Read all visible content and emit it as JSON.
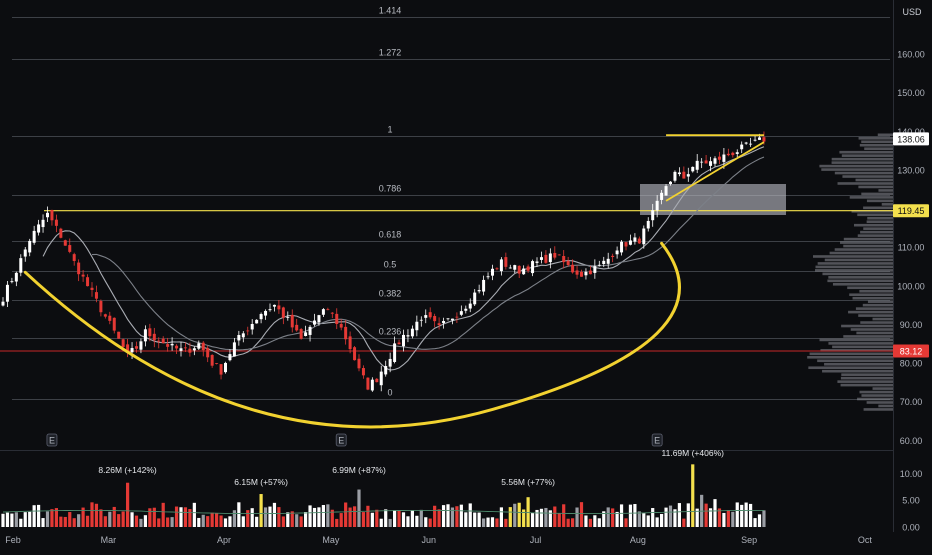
{
  "chart_data": {
    "type": "candlestick",
    "currency_label": "USD",
    "price_axis": {
      "ticks": [
        "160.00",
        "150.00",
        "140.00",
        "130.00",
        "120.00",
        "110.00",
        "100.00",
        "90.00",
        "80.00",
        "70.00",
        "60.00"
      ],
      "min": 57.5,
      "max": 174
    },
    "volume_axis": {
      "ticks": [
        "10.00",
        "5.00",
        "0.00"
      ],
      "max": 12.5
    },
    "time_axis": {
      "labels": [
        "Feb",
        "Mar",
        "Apr",
        "May",
        "Jun",
        "Jul",
        "Aug",
        "Sep",
        "Oct"
      ]
    },
    "price_labels": [
      {
        "value": 138.06,
        "text": "138.06",
        "color": "#ffffff"
      },
      {
        "value": 119.45,
        "text": "119.45",
        "color": "#f4e04d"
      },
      {
        "value": 83.12,
        "text": "83.12",
        "color": "#e53935"
      }
    ],
    "fib_levels": [
      {
        "label": "1.414",
        "value": 169.5
      },
      {
        "label": "1.272",
        "value": 158.6
      },
      {
        "label": "1",
        "value": 138.9
      },
      {
        "label": "0.786",
        "value": 123.6
      },
      {
        "label": "0.618",
        "value": 111.6
      },
      {
        "label": "0.5",
        "value": 103.9
      },
      {
        "label": "0.382",
        "value": 96.3
      },
      {
        "label": "0.236",
        "value": 86.6
      },
      {
        "label": "0",
        "value": 70.8
      }
    ],
    "volume_annotations": [
      {
        "text": "8.26M (+142%)",
        "day": 28
      },
      {
        "text": "6.15M (+57%)",
        "day": 58
      },
      {
        "text": "6.99M (+87%)",
        "day": 80
      },
      {
        "text": "5.56M (+77%)",
        "day": 118
      },
      {
        "text": "11.69M (+406%)",
        "day": 155
      }
    ],
    "earnings_markers": [
      "E",
      "E",
      "E"
    ],
    "price_waypoints": [
      [
        0,
        97
      ],
      [
        3,
        104
      ],
      [
        6,
        112
      ],
      [
        9,
        117
      ],
      [
        10,
        118.5
      ],
      [
        13,
        113
      ],
      [
        16,
        106
      ],
      [
        19,
        100
      ],
      [
        22,
        94
      ],
      [
        25,
        88
      ],
      [
        28,
        82
      ],
      [
        30,
        84
      ],
      [
        32,
        88
      ],
      [
        35,
        86
      ],
      [
        38,
        84
      ],
      [
        41,
        83
      ],
      [
        44,
        85
      ],
      [
        47,
        80
      ],
      [
        49,
        78
      ],
      [
        52,
        85
      ],
      [
        55,
        89
      ],
      [
        58,
        93
      ],
      [
        61,
        95
      ],
      [
        64,
        91
      ],
      [
        67,
        86
      ],
      [
        70,
        91
      ],
      [
        73,
        94
      ],
      [
        76,
        89
      ],
      [
        78,
        84
      ],
      [
        80,
        78
      ],
      [
        82,
        74
      ],
      [
        84,
        76
      ],
      [
        86,
        80
      ],
      [
        88,
        84
      ],
      [
        90,
        87
      ],
      [
        92,
        89
      ],
      [
        94,
        92
      ],
      [
        96,
        91
      ],
      [
        98,
        89
      ],
      [
        100,
        91
      ],
      [
        102,
        93
      ],
      [
        104,
        95
      ],
      [
        106,
        98
      ],
      [
        108,
        101
      ],
      [
        110,
        104
      ],
      [
        112,
        106
      ],
      [
        114,
        105
      ],
      [
        116,
        104
      ],
      [
        118,
        105
      ],
      [
        120,
        106
      ],
      [
        122,
        107
      ],
      [
        124,
        108
      ],
      [
        126,
        106
      ],
      [
        128,
        104
      ],
      [
        130,
        103
      ],
      [
        132,
        104
      ],
      [
        134,
        105
      ],
      [
        136,
        107
      ],
      [
        138,
        110
      ],
      [
        140,
        111
      ],
      [
        143,
        112
      ],
      [
        145,
        116
      ],
      [
        147,
        121
      ],
      [
        149,
        126
      ],
      [
        151,
        129
      ],
      [
        153,
        128
      ],
      [
        155,
        131
      ],
      [
        157,
        132
      ],
      [
        159,
        132
      ],
      [
        161,
        133
      ],
      [
        163,
        134
      ],
      [
        165,
        135
      ],
      [
        167,
        136
      ],
      [
        169,
        137
      ],
      [
        171,
        138
      ]
    ]
  }
}
